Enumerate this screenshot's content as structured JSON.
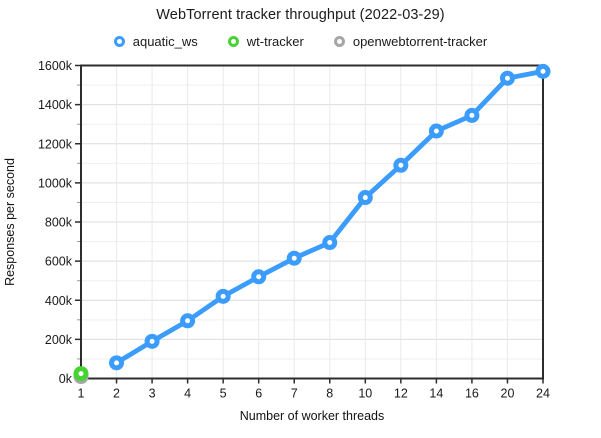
{
  "chart_data": {
    "type": "line",
    "title": "WebTorrent tracker throughput (2022-03-29)",
    "xlabel": "Number of worker threads",
    "ylabel": "Responses per second",
    "categories": [
      "1",
      "2",
      "3",
      "4",
      "5",
      "6",
      "7",
      "8",
      "10",
      "12",
      "14",
      "16",
      "20",
      "24"
    ],
    "ylim": [
      0,
      1600
    ],
    "y_unit": "thousands of responses per second",
    "y_tick_step": 200,
    "y_minor_gridline_step": 100,
    "y_tick_suffix": "k",
    "y_tick_labels": [
      "0k",
      "200k",
      "400k",
      "600k",
      "800k",
      "1000k",
      "1200k",
      "1400k",
      "1600k"
    ],
    "grid": true,
    "legend_position": "top",
    "marker_style": "ring",
    "series": [
      {
        "name": "aquatic_ws",
        "color": "#3b9cfc",
        "x": [
          "2",
          "3",
          "4",
          "5",
          "6",
          "7",
          "8",
          "10",
          "12",
          "14",
          "16",
          "20",
          "24"
        ],
        "values": [
          80,
          190,
          295,
          420,
          520,
          615,
          695,
          925,
          1090,
          1265,
          1345,
          1535,
          1570
        ]
      },
      {
        "name": "wt-tracker",
        "color": "#47d334",
        "x": [
          "1"
        ],
        "values": [
          25
        ]
      },
      {
        "name": "openwebtorrent-tracker",
        "color": "#a6a6a6",
        "x": [
          "1"
        ],
        "values": [
          10
        ]
      }
    ],
    "colors": {
      "axis": "#2d2d2d",
      "grid_minor": "#efefef",
      "grid_major": "#dcdcdc",
      "text": "#1a1a1a"
    }
  }
}
